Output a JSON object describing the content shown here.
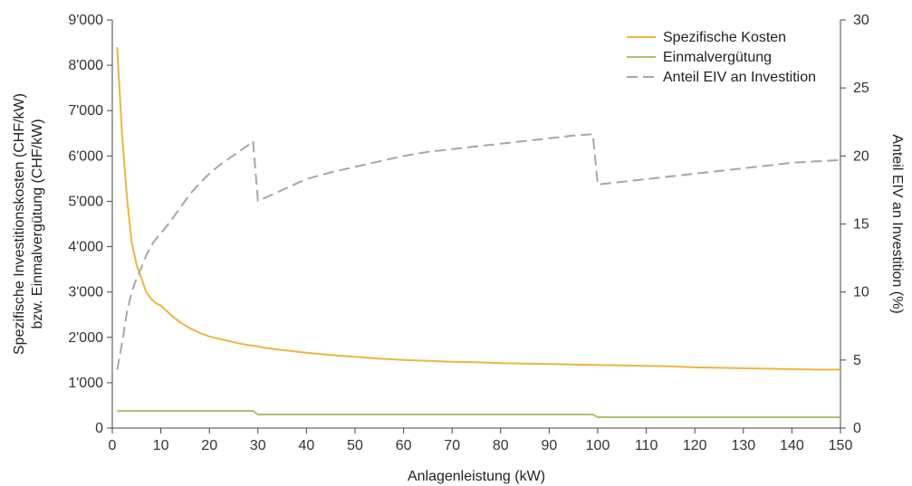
{
  "chart_data": {
    "type": "line",
    "xlabel": "Anlagenleistung (kW)",
    "ylabel_left_line1": "Spezifische Investitionskosten (CHF/kW)",
    "ylabel_left_line2": "bzw. Einmalvergütung (CHF/kW)",
    "ylabel_right": "Anteil EIV an Investition (%)",
    "xlim": [
      0,
      150
    ],
    "ylim_left": [
      0,
      9000
    ],
    "ylim_right": [
      0,
      30
    ],
    "x_ticks": [
      0,
      10,
      20,
      30,
      40,
      50,
      60,
      70,
      80,
      90,
      100,
      110,
      120,
      130,
      140,
      150
    ],
    "x_tick_labels": [
      "0",
      "10",
      "20",
      "30",
      "40",
      "50",
      "60",
      "70",
      "80",
      "90",
      "100",
      "110",
      "120",
      "130",
      "140",
      "150"
    ],
    "y_left_ticks": [
      0,
      1000,
      2000,
      3000,
      4000,
      5000,
      6000,
      7000,
      8000,
      9000
    ],
    "y_left_tick_labels": [
      "0",
      "1'000",
      "2'000",
      "3'000",
      "4'000",
      "5'000",
      "6'000",
      "7'000",
      "8'000",
      "9'000"
    ],
    "y_right_ticks": [
      0,
      5,
      10,
      15,
      20,
      25,
      30
    ],
    "y_right_tick_labels": [
      "0",
      "5",
      "10",
      "15",
      "20",
      "25",
      "30"
    ],
    "grid": false,
    "legend_position": "top-right",
    "series": [
      {
        "name": "Spezifische Kosten",
        "axis": "left",
        "color": "#f2b33d",
        "dash": "solid",
        "points": [
          [
            1,
            8400
          ],
          [
            2,
            6500
          ],
          [
            3,
            5100
          ],
          [
            4,
            4100
          ],
          [
            5,
            3600
          ],
          [
            6,
            3300
          ],
          [
            7,
            3000
          ],
          [
            8,
            2850
          ],
          [
            9,
            2750
          ],
          [
            10,
            2700
          ],
          [
            11,
            2600
          ],
          [
            12,
            2500
          ],
          [
            14,
            2330
          ],
          [
            16,
            2200
          ],
          [
            18,
            2100
          ],
          [
            20,
            2020
          ],
          [
            22,
            1970
          ],
          [
            24,
            1920
          ],
          [
            26,
            1870
          ],
          [
            28,
            1830
          ],
          [
            30,
            1800
          ],
          [
            32,
            1760
          ],
          [
            35,
            1720
          ],
          [
            40,
            1660
          ],
          [
            45,
            1610
          ],
          [
            50,
            1570
          ],
          [
            55,
            1530
          ],
          [
            60,
            1500
          ],
          [
            65,
            1480
          ],
          [
            70,
            1460
          ],
          [
            75,
            1450
          ],
          [
            80,
            1430
          ],
          [
            85,
            1420
          ],
          [
            90,
            1410
          ],
          [
            95,
            1400
          ],
          [
            100,
            1390
          ],
          [
            105,
            1380
          ],
          [
            110,
            1370
          ],
          [
            115,
            1360
          ],
          [
            120,
            1340
          ],
          [
            125,
            1330
          ],
          [
            130,
            1320
          ],
          [
            135,
            1310
          ],
          [
            140,
            1300
          ],
          [
            145,
            1290
          ],
          [
            150,
            1290
          ]
        ]
      },
      {
        "name": "Einmalvergütung",
        "axis": "left",
        "color": "#a9c46c",
        "dash": "solid",
        "points": [
          [
            1,
            380
          ],
          [
            29,
            380
          ],
          [
            30,
            300
          ],
          [
            99,
            300
          ],
          [
            100,
            240
          ],
          [
            150,
            240
          ]
        ]
      },
      {
        "name": "Anteil EIV an Investition",
        "axis": "right",
        "color": "#a6a6a6",
        "dash": "dashed",
        "points": [
          [
            1,
            4.3
          ],
          [
            2,
            6.2
          ],
          [
            3,
            8.5
          ],
          [
            4,
            10.0
          ],
          [
            5,
            11.0
          ],
          [
            6,
            11.8
          ],
          [
            7,
            12.7
          ],
          [
            8,
            13.4
          ],
          [
            9,
            13.9
          ],
          [
            10,
            14.3
          ],
          [
            12,
            15.2
          ],
          [
            14,
            16.2
          ],
          [
            16,
            17.2
          ],
          [
            18,
            18.0
          ],
          [
            20,
            18.7
          ],
          [
            22,
            19.3
          ],
          [
            24,
            19.8
          ],
          [
            26,
            20.3
          ],
          [
            28,
            20.8
          ],
          [
            29,
            21.1
          ],
          [
            30,
            16.7
          ],
          [
            32,
            17.0
          ],
          [
            35,
            17.5
          ],
          [
            40,
            18.3
          ],
          [
            45,
            18.8
          ],
          [
            50,
            19.2
          ],
          [
            55,
            19.6
          ],
          [
            60,
            20.0
          ],
          [
            65,
            20.3
          ],
          [
            70,
            20.5
          ],
          [
            75,
            20.7
          ],
          [
            80,
            20.9
          ],
          [
            85,
            21.1
          ],
          [
            90,
            21.3
          ],
          [
            95,
            21.5
          ],
          [
            99,
            21.6
          ],
          [
            100,
            17.9
          ],
          [
            105,
            18.1
          ],
          [
            110,
            18.3
          ],
          [
            115,
            18.5
          ],
          [
            120,
            18.7
          ],
          [
            125,
            18.9
          ],
          [
            130,
            19.1
          ],
          [
            135,
            19.3
          ],
          [
            140,
            19.5
          ],
          [
            145,
            19.6
          ],
          [
            150,
            19.7
          ]
        ]
      }
    ]
  }
}
